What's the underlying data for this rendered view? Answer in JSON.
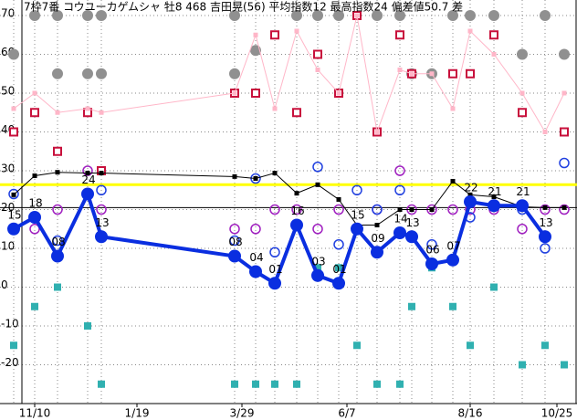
{
  "chart_data": {
    "type": "line",
    "title": "7枠7番 コウユーカゲムシャ 牡8 468 吉田晃(56) 平均指数12 最高指数24 偏差値50.7 差",
    "xlim": [
      0,
      63.2
    ],
    "ylim": [
      -30,
      74
    ],
    "yticks": [
      -20,
      -10,
      0,
      10,
      20,
      30,
      40,
      50,
      60,
      70
    ],
    "xticks": [
      {
        "value": 3.8,
        "label": "11/10"
      },
      {
        "value": 15.0,
        "label": "1/19"
      },
      {
        "value": 26.5,
        "label": "3/29"
      },
      {
        "value": 38.0,
        "label": "6/7"
      },
      {
        "value": 51.5,
        "label": "8/16"
      },
      {
        "value": 61.0,
        "label": "10/25"
      }
    ],
    "grid": true,
    "hlines": [
      {
        "value": 26.4,
        "color": "#ffff00"
      },
      {
        "value": 20.5,
        "color": "#000000"
      }
    ],
    "series": [
      {
        "name": "指数",
        "type": "line",
        "color": "#0a2ee0",
        "x": [
          1.5,
          3.8,
          6.3,
          9.6,
          11.1,
          25.7,
          28.0,
          30.1,
          32.5,
          34.8,
          37.1,
          39.1,
          41.3,
          43.8,
          45.1,
          47.3,
          49.6,
          51.5,
          54.1,
          57.2,
          59.7
        ],
        "values": [
          15,
          18,
          8,
          24,
          13,
          8,
          4,
          1,
          16,
          3,
          1,
          15,
          9,
          14,
          13,
          6,
          7,
          22,
          21,
          21,
          13
        ],
        "value_labels": [
          "15",
          "18",
          "08",
          "24",
          "13",
          "08",
          "04",
          "01",
          "16",
          "03",
          "01",
          "15",
          "09",
          "14",
          "13",
          "06",
          "07",
          "22",
          "21",
          "21",
          "13"
        ]
      },
      {
        "name": "平均",
        "type": "line-small",
        "color": "#000000",
        "x": [
          1.5,
          3.8,
          6.3,
          9.6,
          11.1,
          25.7,
          28.0,
          30.1,
          32.5,
          34.8,
          37.1,
          39.1,
          41.3,
          43.8,
          45.1,
          47.3,
          49.6,
          51.5,
          54.1,
          57.2,
          59.7,
          61.8
        ],
        "values": [
          23.8,
          28.7,
          29.6,
          29.4,
          29.4,
          28.5,
          28,
          29.4,
          24.2,
          26.4,
          22.6,
          16,
          16,
          20,
          20,
          20,
          27.3,
          23.8,
          23.3,
          20.7,
          20.5,
          20.5
        ]
      },
      {
        "name": "上位",
        "type": "line-small",
        "color": "#ffb6c8",
        "x": [
          1.5,
          3.8,
          6.3,
          9.6,
          11.1,
          25.7,
          28.0,
          30.1,
          32.5,
          34.8,
          37.1,
          39.1,
          41.3,
          43.8,
          45.1,
          47.3,
          49.6,
          51.5,
          54.1,
          57.2,
          59.7,
          61.8
        ],
        "values": [
          46,
          50,
          45,
          46,
          45,
          50,
          65,
          46,
          66,
          56,
          50,
          70,
          40,
          56,
          55,
          55,
          46,
          66,
          60,
          50,
          40,
          50
        ]
      },
      {
        "name": "上限",
        "type": "dot",
        "color": "#909090",
        "x": [
          3.8,
          6.3,
          9.6,
          11.1,
          25.7,
          32.5,
          34.8,
          37.1,
          41.3,
          43.8,
          49.6,
          51.5,
          54.1,
          59.7,
          1.5,
          6.3,
          9.6,
          11.1,
          25.7,
          28.0,
          45.1,
          47.3,
          57.2,
          61.8
        ],
        "values": [
          70,
          70,
          70,
          70,
          70,
          70,
          70,
          70,
          70,
          70,
          70,
          70,
          70,
          70,
          60,
          55,
          55,
          55,
          55,
          61,
          55,
          55,
          60,
          60
        ]
      },
      {
        "name": "高値",
        "type": "square",
        "color": "#c8103c",
        "x": [
          1.5,
          3.8,
          6.3,
          9.6,
          11.1,
          25.7,
          28.0,
          30.1,
          32.5,
          34.8,
          37.1,
          39.1,
          41.3,
          43.8,
          45.1,
          49.6,
          51.5,
          54.1,
          57.2,
          61.8
        ],
        "values": [
          40,
          45,
          35,
          45,
          30,
          50,
          50,
          65,
          45,
          60,
          50,
          70,
          40,
          65,
          55,
          55,
          55,
          65,
          45,
          40
        ]
      },
      {
        "name": "中値",
        "type": "circle",
        "color": "#a020c0",
        "x": [
          1.5,
          3.8,
          6.3,
          9.6,
          11.1,
          25.7,
          28.0,
          30.1,
          32.5,
          34.8,
          37.1,
          39.1,
          41.3,
          43.8,
          45.1,
          47.3,
          49.6,
          51.5,
          54.1,
          57.2,
          59.7,
          61.8
        ],
        "values": [
          15,
          15,
          20,
          30,
          20,
          15,
          15,
          20,
          20,
          15,
          20,
          15,
          20,
          30,
          20,
          20,
          20,
          20,
          20,
          15,
          20,
          20
        ]
      },
      {
        "name": "前走",
        "type": "circle",
        "color": "#2040e0",
        "x": [
          1.5,
          6.3,
          11.1,
          25.7,
          28.0,
          30.1,
          34.8,
          37.1,
          39.1,
          41.3,
          43.8,
          47.3,
          51.5,
          57.2,
          59.7,
          61.8
        ],
        "values": [
          24,
          12,
          25,
          12,
          28,
          9,
          31,
          11,
          25,
          20,
          25,
          11,
          18,
          20,
          10,
          32
        ]
      },
      {
        "name": "下値",
        "type": "square-fill",
        "color": "#30b0b0",
        "x": [
          1.5,
          3.8,
          6.3,
          9.6,
          11.1,
          25.7,
          28.0,
          30.1,
          32.5,
          34.8,
          37.1,
          39.1,
          41.3,
          43.8,
          45.1,
          47.3,
          49.6,
          51.5,
          54.1,
          57.2,
          59.7,
          61.8
        ],
        "values": [
          -15,
          -5,
          0,
          -10,
          -25,
          -25,
          -25,
          -25,
          -25,
          5,
          5,
          -15,
          -25,
          -25,
          -5,
          5,
          -5,
          -15,
          0,
          -20,
          -15,
          -20
        ]
      }
    ]
  }
}
